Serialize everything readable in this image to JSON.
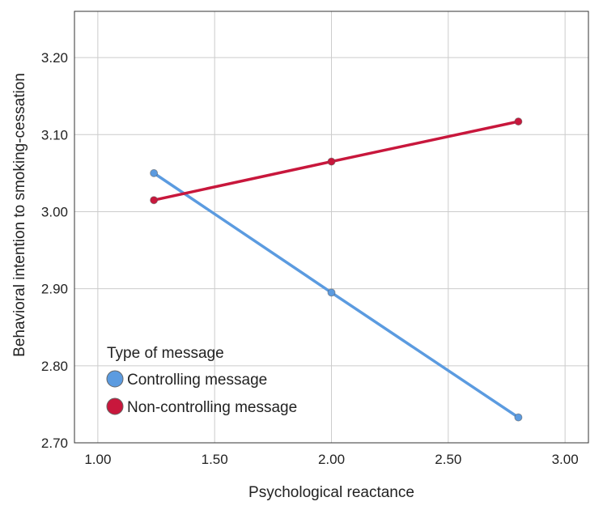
{
  "chart_data": {
    "type": "line",
    "xlabel": "Psychological reactance",
    "ylabel": "Behavioral intention to smoking-cessation",
    "xlim": [
      0.9,
      3.1
    ],
    "ylim": [
      2.7,
      3.26
    ],
    "x_ticks": [
      "1.00",
      "1.50",
      "2.00",
      "2.50",
      "3.00"
    ],
    "y_ticks": [
      "2.70",
      "2.80",
      "2.90",
      "3.00",
      "3.10",
      "3.20"
    ],
    "grid": true,
    "legend": {
      "title": "Type of message",
      "position": "bottom-left"
    },
    "series": [
      {
        "name": "Controlling message",
        "color": "#5b9be0",
        "x": [
          1.24,
          2.0,
          2.8
        ],
        "y": [
          3.05,
          2.895,
          2.733
        ]
      },
      {
        "name": "Non-controlling message",
        "color": "#c8173c",
        "x": [
          1.24,
          2.0,
          2.8
        ],
        "y": [
          3.015,
          3.065,
          3.117
        ]
      }
    ]
  }
}
